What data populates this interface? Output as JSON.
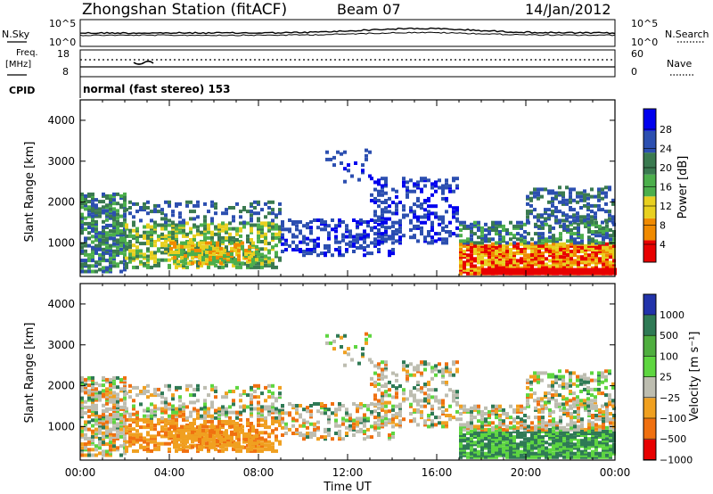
{
  "header": {
    "title": "Zhongshan Station (fitACF)",
    "beam": "Beam 07",
    "date": "14/Jan/2012"
  },
  "params": {
    "nsky_label": "N.Sky",
    "nsky_ticks": [
      "10^5",
      "10^0"
    ],
    "nsearch_label": "N.Search",
    "nsearch_ticks": [
      "10^5",
      "10^0"
    ],
    "freq_label_1": "Freq.",
    "freq_label_2": "[MHz]",
    "freq_ticks": [
      "18",
      "8"
    ],
    "nave_label": "Nave",
    "nave_ticks": [
      "60",
      "0"
    ],
    "cpid_label": "CPID",
    "cpid_value": "normal (fast stereo) 153"
  },
  "chart_data": [
    {
      "type": "heatmap",
      "name": "power",
      "ylabel": "Slant Range [km]",
      "yticks": [
        "4000",
        "3000",
        "2000",
        "1000"
      ],
      "yrange_km": [
        180,
        4500
      ],
      "xticks": [
        "00:00",
        "04:00",
        "08:00",
        "12:00",
        "16:00",
        "20:00",
        "00:00"
      ],
      "colorbar_label": "Power [dB]",
      "colorbar_ticks": [
        "28",
        "24",
        "20",
        "16",
        "12",
        "8",
        "4"
      ],
      "colorbar_colors": [
        "#0000ee",
        "#2c4fb0",
        "#3a7a50",
        "#4caf4c",
        "#e8d020",
        "#f08a00",
        "#e80000"
      ]
    },
    {
      "type": "heatmap",
      "name": "velocity",
      "ylabel": "Slant Range [km]",
      "yticks": [
        "4000",
        "3000",
        "2000",
        "1000"
      ],
      "yrange_km": [
        180,
        4500
      ],
      "xticks": [
        "00:00",
        "04:00",
        "08:00",
        "12:00",
        "16:00",
        "20:00",
        "00:00"
      ],
      "xlabel": "Time UT",
      "colorbar_label": "Velocity [m s⁻¹]",
      "colorbar_ticks": [
        "1000",
        "500",
        "100",
        "25",
        "−25",
        "−100",
        "−500",
        "−1000"
      ],
      "colorbar_colors": [
        "#2233aa",
        "#2f7a55",
        "#4fae3f",
        "#5ed640",
        "#bdbdb0",
        "#f0a020",
        "#f07010",
        "#e80000"
      ]
    }
  ]
}
